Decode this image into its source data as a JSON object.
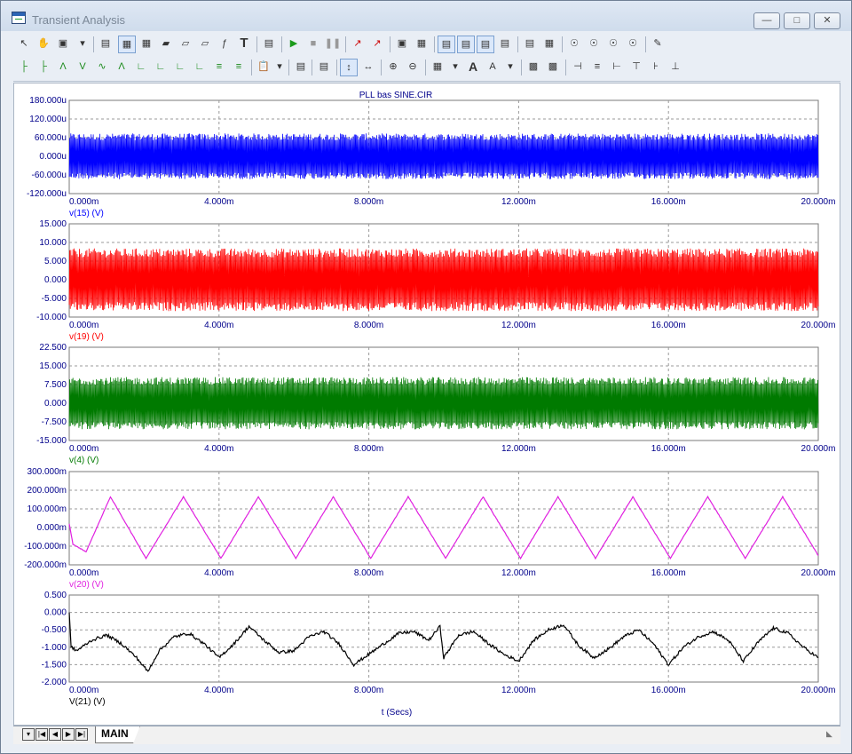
{
  "window": {
    "title": "Transient Analysis"
  },
  "plot": {
    "title": "PLL bas SINE.CIR",
    "xlabel": "t (Secs)",
    "xticks": [
      "0.000m",
      "4.000m",
      "8.000m",
      "12.000m",
      "16.000m",
      "20.000m"
    ]
  },
  "tabs": {
    "active": "MAIN"
  },
  "colors": {
    "blue": "#0000ff",
    "red": "#ff0000",
    "green": "#007a00",
    "magenta": "#e020e0",
    "black": "#000000",
    "axis": "#00008b"
  },
  "chart_data": [
    {
      "type": "line",
      "name": "v(15) (V)",
      "color": "#0000ff",
      "xlim": [
        0,
        20
      ],
      "x_unit": "ms",
      "yticks": [
        "180.000u",
        "120.000u",
        "60.000u",
        "0.000u",
        "-60.000u",
        "-120.000u"
      ],
      "ylim": [
        -120,
        180
      ],
      "y_unit": "u",
      "signal": "high-frequency noise",
      "envelope": [
        -70,
        70
      ]
    },
    {
      "type": "line",
      "name": "v(19) (V)",
      "color": "#ff0000",
      "xlim": [
        0,
        20
      ],
      "x_unit": "ms",
      "yticks": [
        "15.000",
        "10.000",
        "5.000",
        "0.000",
        "-5.000",
        "-10.000"
      ],
      "ylim": [
        -10,
        15
      ],
      "signal": "high-frequency oscillation",
      "envelope": [
        -8,
        8
      ]
    },
    {
      "type": "line",
      "name": "v(4) (V)",
      "color": "#007a00",
      "xlim": [
        0,
        20
      ],
      "x_unit": "ms",
      "yticks": [
        "22.500",
        "15.000",
        "7.500",
        "0.000",
        "-7.500",
        "-15.000"
      ],
      "ylim": [
        -15,
        22.5
      ],
      "signal": "high-frequency oscillation",
      "envelope": [
        -10,
        10
      ]
    },
    {
      "type": "line",
      "name": "v(20) (V)",
      "color": "#e020e0",
      "xlim": [
        0,
        20
      ],
      "x_unit": "ms",
      "yticks": [
        "300.000m",
        "200.000m",
        "100.000m",
        "0.000m",
        "-100.000m",
        "-200.000m"
      ],
      "ylim": [
        -200,
        300
      ],
      "y_unit": "m",
      "signal": "triangle wave",
      "x": [
        0,
        0.1,
        0.45,
        1.1,
        2.05,
        3.05,
        4.05,
        5.05,
        6.05,
        7.05,
        8.05,
        9.05,
        10.05,
        11.05,
        12.05,
        13.05,
        14.05,
        15.05,
        16.05,
        17.05,
        18.05,
        19.05,
        20.0
      ],
      "y": [
        20,
        -90,
        -130,
        165,
        -165,
        165,
        -165,
        165,
        -165,
        165,
        -165,
        165,
        -165,
        165,
        -165,
        165,
        -165,
        165,
        -165,
        165,
        -165,
        165,
        -150
      ]
    },
    {
      "type": "line",
      "name": "V(21) (V)",
      "color": "#000000",
      "xlim": [
        0,
        20
      ],
      "x_unit": "ms",
      "yticks": [
        "0.500",
        "0.000",
        "-0.500",
        "-1.000",
        "-1.500",
        "-2.000"
      ],
      "ylim": [
        -2.0,
        0.5
      ],
      "signal": "noisy slow variation",
      "x": [
        0,
        0.05,
        0.2,
        0.6,
        1.0,
        1.4,
        1.8,
        2.1,
        2.4,
        2.8,
        3.2,
        3.6,
        4.0,
        4.4,
        4.8,
        5.2,
        5.6,
        6.0,
        6.4,
        6.8,
        7.2,
        7.6,
        8.0,
        8.4,
        8.8,
        9.2,
        9.6,
        9.9,
        10.0,
        10.4,
        10.8,
        11.2,
        11.6,
        12.0,
        12.4,
        12.8,
        13.2,
        13.6,
        14.0,
        14.4,
        14.8,
        15.2,
        15.6,
        16.0,
        16.4,
        16.8,
        17.2,
        17.6,
        18.0,
        18.4,
        18.8,
        19.2,
        19.6,
        20.0
      ],
      "y": [
        0.0,
        -1.0,
        -1.1,
        -0.8,
        -0.65,
        -0.9,
        -1.3,
        -1.7,
        -1.1,
        -0.7,
        -0.6,
        -0.9,
        -1.3,
        -0.9,
        -0.4,
        -0.8,
        -1.15,
        -1.1,
        -0.7,
        -0.55,
        -0.9,
        -1.5,
        -1.2,
        -0.9,
        -0.6,
        -0.55,
        -0.8,
        -0.4,
        -1.3,
        -0.65,
        -0.55,
        -0.9,
        -1.2,
        -1.4,
        -0.8,
        -0.5,
        -0.35,
        -0.95,
        -1.3,
        -1.05,
        -0.7,
        -0.5,
        -0.9,
        -1.5,
        -1.0,
        -0.7,
        -0.55,
        -0.8,
        -1.4,
        -0.85,
        -0.45,
        -0.6,
        -1.0,
        -1.3
      ]
    }
  ]
}
